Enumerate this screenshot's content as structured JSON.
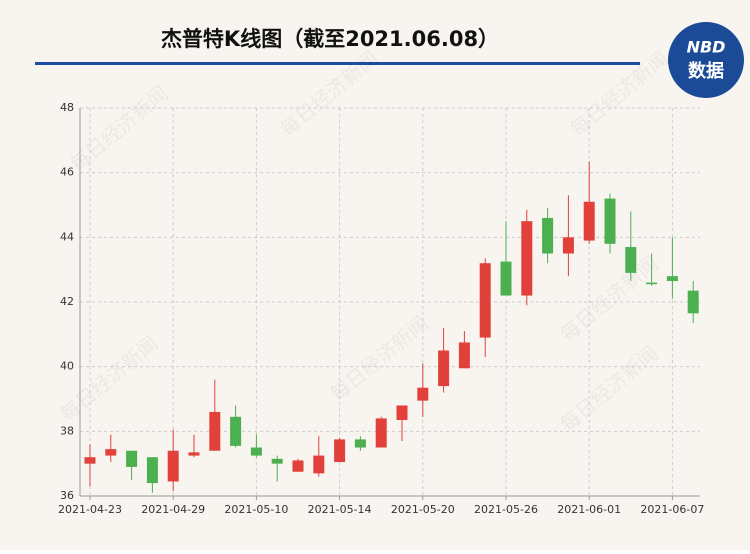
{
  "chart_data": {
    "type": "candlestick",
    "title": "杰普特K线图（截至2021.06.08）",
    "categories": [
      "2021-04-23",
      null,
      null,
      null,
      "2021-04-29",
      null,
      null,
      null,
      "2021-05-10",
      null,
      null,
      null,
      "2021-05-14",
      null,
      null,
      null,
      "2021-05-20",
      null,
      null,
      null,
      "2021-05-26",
      null,
      null,
      null,
      "2021-06-01",
      null,
      null,
      null,
      "2021-06-07",
      null
    ],
    "open": [
      37.0,
      37.25,
      37.4,
      37.2,
      36.45,
      37.25,
      37.4,
      38.45,
      37.5,
      37.15,
      36.75,
      36.7,
      37.05,
      37.75,
      37.5,
      38.35,
      38.95,
      39.4,
      39.95,
      40.9,
      43.25,
      42.2,
      44.6,
      43.5,
      43.9,
      45.2,
      43.7,
      42.6,
      42.8,
      42.35
    ],
    "high": [
      37.6,
      37.9,
      37.4,
      37.2,
      38.05,
      37.9,
      39.6,
      38.8,
      37.9,
      37.25,
      37.15,
      37.85,
      37.8,
      37.85,
      38.45,
      38.8,
      40.1,
      41.2,
      41.1,
      43.35,
      44.5,
      44.85,
      44.9,
      45.3,
      46.35,
      45.35,
      44.8,
      43.5,
      44.0,
      42.65
    ],
    "low": [
      36.3,
      37.05,
      36.5,
      36.1,
      36.15,
      37.2,
      37.4,
      37.5,
      37.2,
      36.45,
      36.75,
      36.6,
      37.05,
      37.4,
      37.5,
      37.7,
      38.45,
      39.2,
      39.95,
      40.3,
      42.2,
      41.9,
      43.2,
      42.8,
      43.8,
      43.5,
      42.65,
      42.5,
      42.1,
      41.35
    ],
    "close": [
      37.2,
      37.45,
      36.9,
      36.4,
      37.4,
      37.35,
      38.6,
      37.55,
      37.25,
      37.0,
      37.1,
      37.25,
      37.75,
      37.5,
      38.4,
      38.8,
      39.35,
      40.5,
      40.75,
      43.2,
      42.2,
      44.5,
      43.5,
      44.0,
      45.1,
      43.8,
      42.9,
      42.55,
      42.65,
      41.65
    ],
    "up_color": "#e2403a",
    "down_color": "#4cb050",
    "ylim": [
      36,
      48
    ],
    "yticks": [
      36,
      38,
      40,
      42,
      44,
      46,
      48
    ],
    "grid": true,
    "watermark": "每日经济新闻"
  },
  "logo": {
    "brand": "NBD",
    "label": "数据"
  }
}
